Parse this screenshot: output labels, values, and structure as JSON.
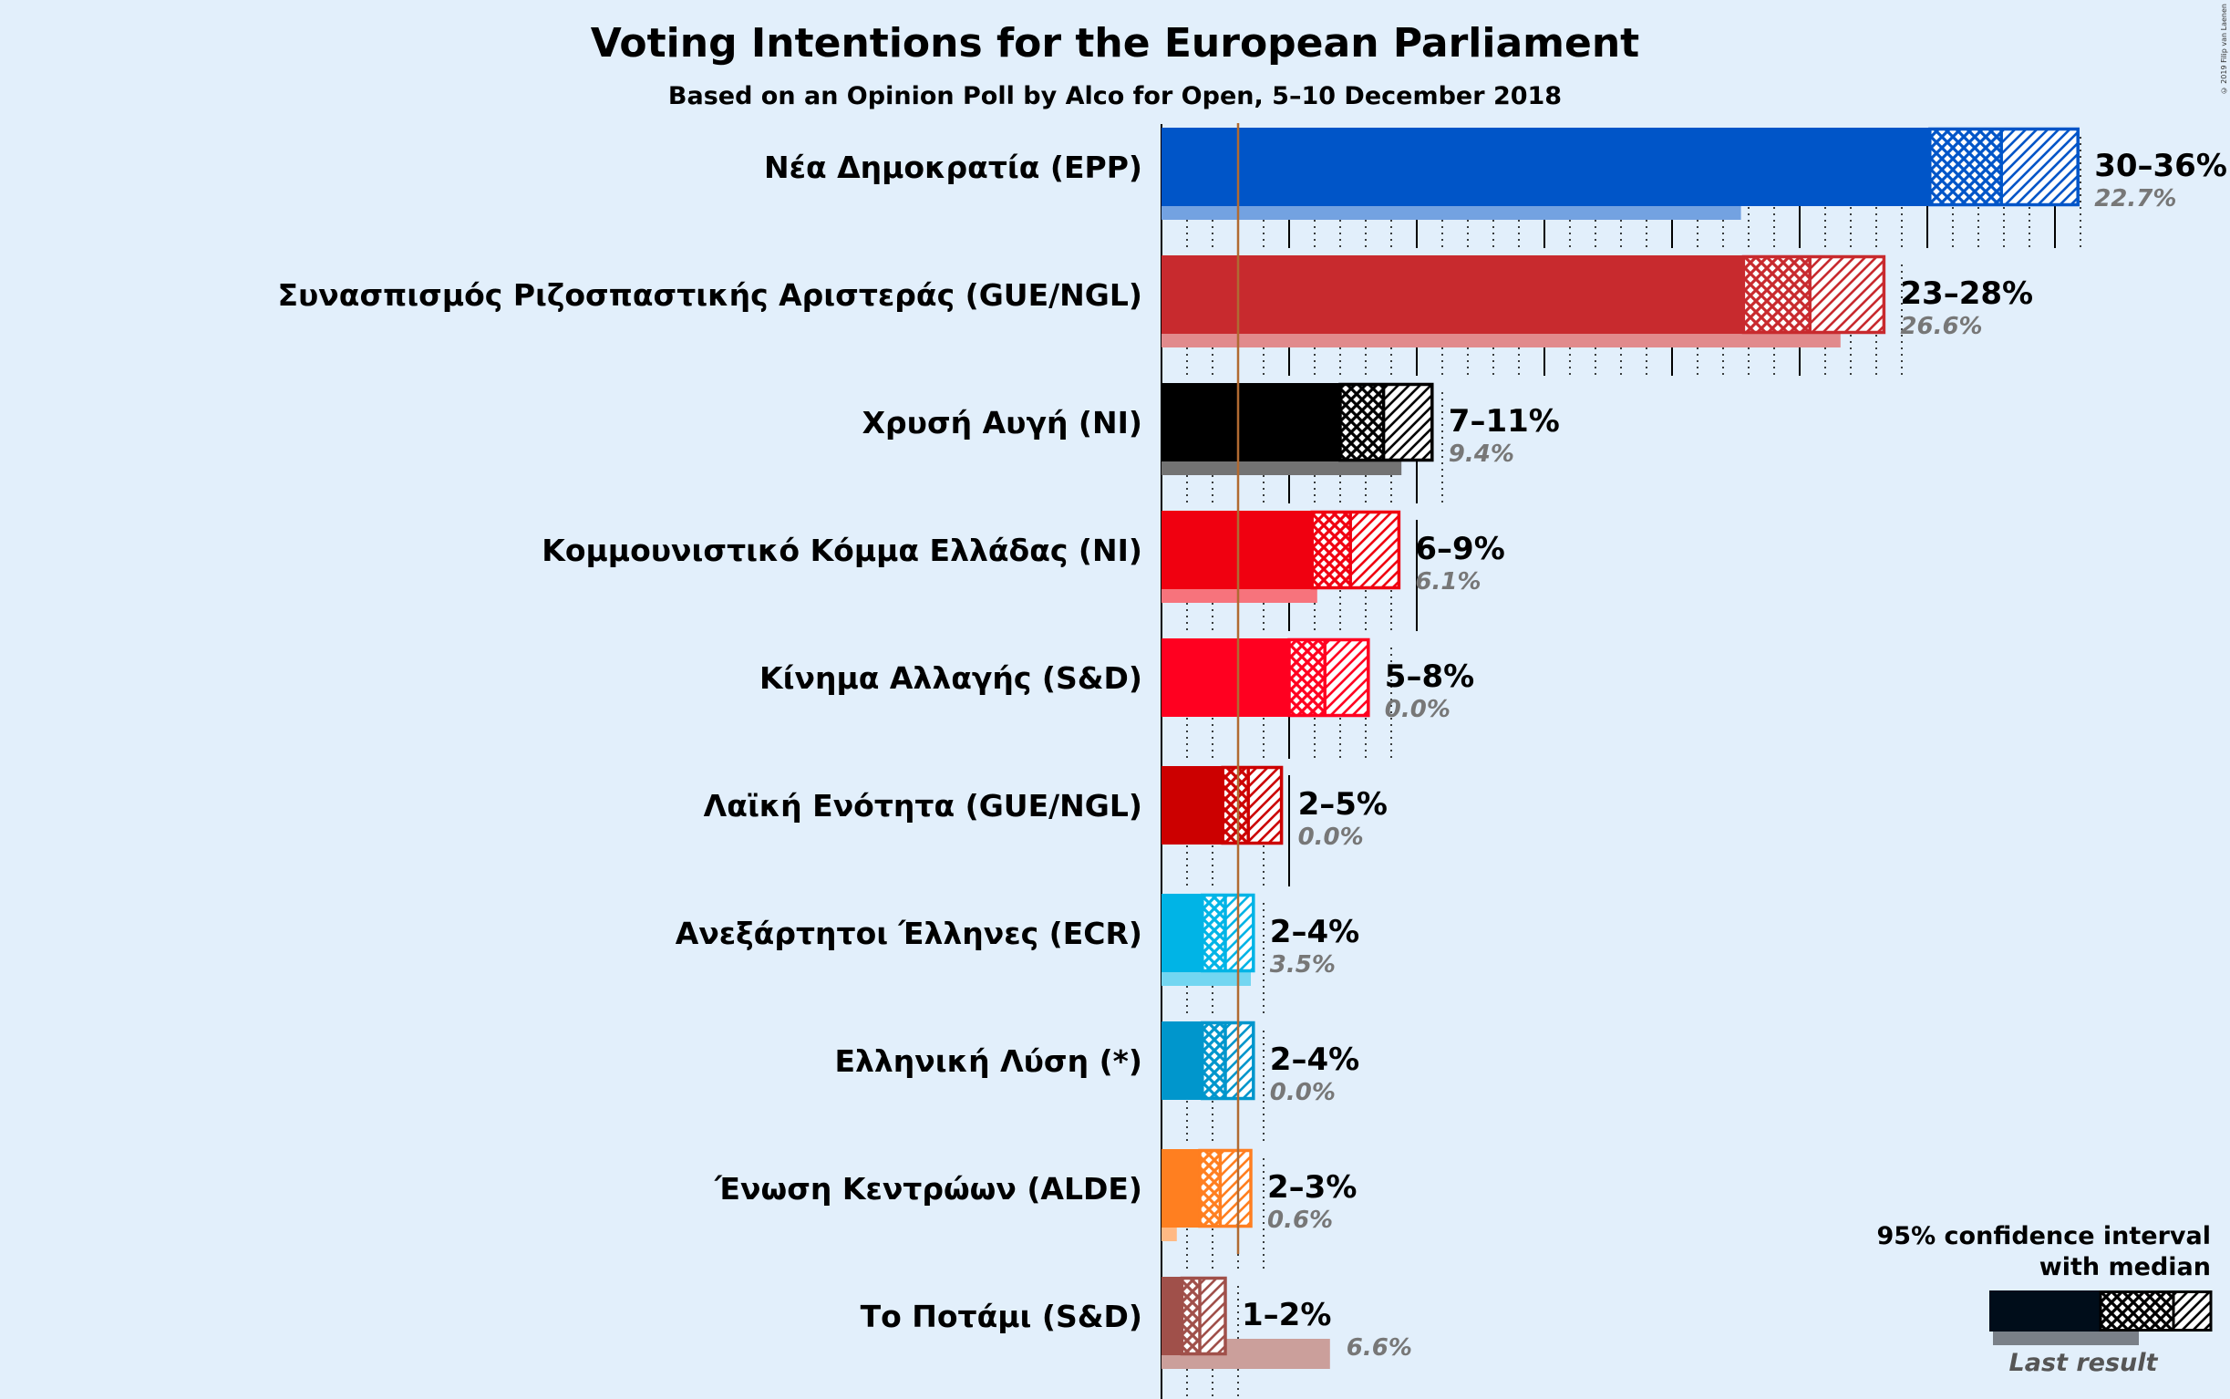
{
  "chart_data": {
    "type": "bar",
    "title": "Voting Intentions for the European Parliament",
    "subtitle": "Based on an Opinion Poll by Alco for Open, 5–10 December 2018",
    "copyright": "© 2019 Filip van Laenen",
    "threshold": 3,
    "parties": [
      {
        "name": "Νέα Δημοκρατία (EPP)",
        "color": "#0055c8",
        "ci_low": 30.1,
        "median": 32.9,
        "ci_high": 35.9,
        "range_label": "30–36%",
        "last_label": "22.7%",
        "last": 22.7
      },
      {
        "name": "Συνασπισμός Ριζοσπαστικής Αριστεράς (GUE/NGL)",
        "color": "#c82a2e",
        "ci_low": 22.8,
        "median": 25.4,
        "ci_high": 28.3,
        "range_label": "23–28%",
        "last_label": "26.6%",
        "last": 26.6
      },
      {
        "name": "Χρυσή Αυγή (NI)",
        "color": "#000000",
        "ci_low": 7.0,
        "median": 8.7,
        "ci_high": 10.6,
        "range_label": "7–11%",
        "last_label": "9.4%",
        "last": 9.4
      },
      {
        "name": "Κομμουνιστικό Κόμμα Ελλάδας (NI)",
        "color": "#f00010",
        "ci_low": 5.9,
        "median": 7.4,
        "ci_high": 9.3,
        "range_label": "6–9%",
        "last_label": "6.1%",
        "last": 6.1
      },
      {
        "name": "Κίνημα Αλλαγής (S&D)",
        "color": "#ff0020",
        "ci_low": 5.0,
        "median": 6.4,
        "ci_high": 8.1,
        "range_label": "5–8%",
        "last_label": "0.0%",
        "last": 0.0
      },
      {
        "name": "Λαϊκή Ενότητα (GUE/NGL)",
        "color": "#cc0000",
        "ci_low": 2.4,
        "median": 3.4,
        "ci_high": 4.7,
        "range_label": "2–5%",
        "last_label": "0.0%",
        "last": 0.0
      },
      {
        "name": "Ανεξάρτητοι Έλληνες (ECR)",
        "color": "#00b4e6",
        "ci_low": 1.6,
        "median": 2.5,
        "ci_high": 3.6,
        "range_label": "2–4%",
        "last_label": "3.5%",
        "last": 3.5
      },
      {
        "name": "Ελληνική Λύση (*)",
        "color": "#0096cc",
        "ci_low": 1.6,
        "median": 2.5,
        "ci_high": 3.6,
        "range_label": "2–4%",
        "last_label": "0.0%",
        "last": 0.0
      },
      {
        "name": "Ένωση Κεντρώων (ALDE)",
        "color": "#ff7f20",
        "ci_low": 1.5,
        "median": 2.3,
        "ci_high": 3.5,
        "range_label": "2–3%",
        "last_label": "0.6%",
        "last": 0.6
      },
      {
        "name": "Το Ποτάμι (S&D)",
        "color": "#a0504a",
        "ci_low": 0.8,
        "median": 1.5,
        "ci_high": 2.5,
        "range_label": "1–2%",
        "last_label": "6.6%",
        "last": 6.6
      }
    ],
    "legend": {
      "line1": "95% confidence interval",
      "line2": "with median",
      "last_result": "Last result",
      "position": "bottom-right"
    }
  }
}
